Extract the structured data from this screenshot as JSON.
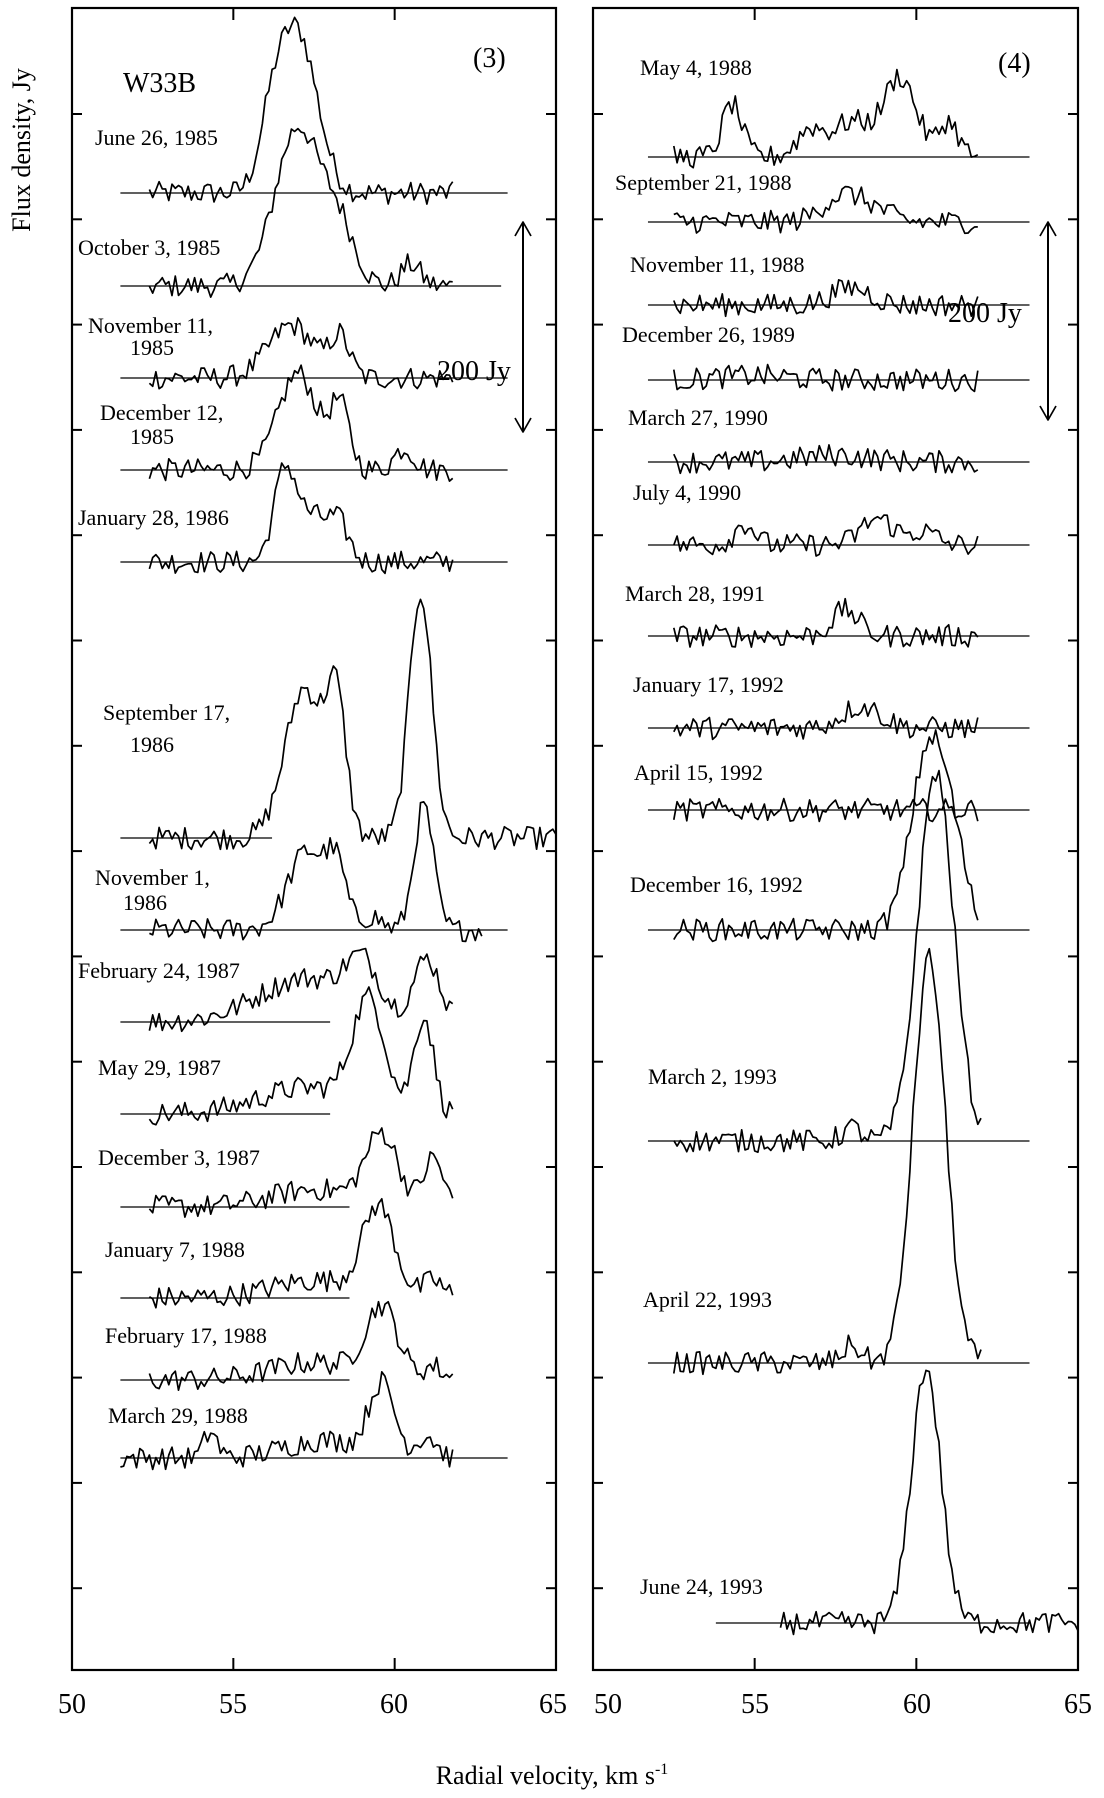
{
  "chart_data": {
    "type": "line",
    "xlabel": "Radial velocity, km s",
    "xlabel_sup": "-1",
    "ylabel": "Flux density, Jy",
    "xlim": [
      50,
      65
    ],
    "x_ticks": [
      "50",
      "55",
      "60",
      "65"
    ],
    "right_x_ticks": [
      "50",
      "55",
      "60",
      "65"
    ],
    "panels": [
      {
        "id": "3",
        "panel_label": "(3)",
        "source": "W33B",
        "scale_label": "200 Jy",
        "series": [
          {
            "name": "June 26, 1985",
            "name2": "",
            "peaks": [
              [
                57.0,
                180,
                0.6
              ],
              [
                56.2,
                60,
                0.4
              ]
            ]
          },
          {
            "name": "October 3, 1985",
            "name2": "",
            "peaks": [
              [
                57.0,
                180,
                0.7
              ],
              [
                58.3,
                60,
                0.5
              ],
              [
                60.5,
                25,
                0.3
              ]
            ]
          },
          {
            "name": "November 11,",
            "name2": "1985",
            "peaks": [
              [
                56.8,
                60,
                0.7
              ],
              [
                58.3,
                45,
                0.3
              ]
            ]
          },
          {
            "name": "December 12,",
            "name2": "1985",
            "peaks": [
              [
                57.0,
                110,
                0.6
              ],
              [
                58.3,
                70,
                0.3
              ],
              [
                60.3,
                25,
                0.3
              ]
            ]
          },
          {
            "name": "January 28, 1986",
            "name2": "",
            "peaks": [
              [
                56.6,
                100,
                0.35
              ],
              [
                57.5,
                50,
                0.5
              ],
              [
                58.3,
                35,
                0.3
              ]
            ]
          },
          {
            "name": "September 17,",
            "name2": "1986",
            "peaks": [
              [
                57.2,
                170,
                0.6
              ],
              [
                58.2,
                140,
                0.3
              ],
              [
                60.8,
                280,
                0.35
              ]
            ]
          },
          {
            "name": "November 1,",
            "name2": "1986",
            "peaks": [
              [
                57.3,
                90,
                0.6
              ],
              [
                58.2,
                60,
                0.3
              ],
              [
                60.9,
                140,
                0.3
              ],
              [
                59.3,
                15,
                0.3
              ]
            ]
          },
          {
            "name": "February 24, 1987",
            "name2": "",
            "peaks": [
              [
                57.3,
                50,
                1.5
              ],
              [
                59.0,
                50,
                0.5
              ],
              [
                61.0,
                70,
                0.4
              ]
            ]
          },
          {
            "name": "May 29, 1987",
            "name2": "",
            "peaks": [
              [
                57.3,
                30,
                1.5
              ],
              [
                59.2,
                120,
                0.5
              ],
              [
                60.9,
                110,
                0.3
              ]
            ]
          },
          {
            "name": "December 3, 1987",
            "name2": "",
            "peaks": [
              [
                57.5,
                20,
                1.3
              ],
              [
                59.6,
                80,
                0.5
              ],
              [
                61.2,
                55,
                0.3
              ]
            ]
          },
          {
            "name": "January 7, 1988",
            "name2": "",
            "peaks": [
              [
                57.5,
                20,
                1.3
              ],
              [
                59.5,
                100,
                0.5
              ],
              [
                61.2,
                20,
                0.3
              ]
            ]
          },
          {
            "name": "February 17, 1988",
            "name2": "",
            "peaks": [
              [
                57.5,
                20,
                1.3
              ],
              [
                59.6,
                80,
                0.5
              ],
              [
                61.2,
                15,
                0.3
              ]
            ]
          },
          {
            "name": "March 29, 1988",
            "name2": "",
            "peaks": [
              [
                54.3,
                30,
                0.2
              ],
              [
                57.8,
                20,
                1.2
              ],
              [
                59.6,
                80,
                0.4
              ],
              [
                61.0,
                25,
                0.3
              ]
            ]
          }
        ]
      },
      {
        "id": "4",
        "panel_label": "(4)",
        "source": "",
        "scale_label": "200 Jy",
        "series": [
          {
            "name": "May 4, 1988",
            "name2": "",
            "peaks": [
              [
                54.3,
                60,
                0.3
              ],
              [
                56.7,
                30,
                0.4
              ],
              [
                58.0,
                40,
                0.6
              ],
              [
                59.5,
                90,
                0.5
              ],
              [
                61.0,
                40,
                0.3
              ]
            ]
          },
          {
            "name": "September 21, 1988",
            "name2": "",
            "peaks": [
              [
                57.7,
                30,
                0.6
              ],
              [
                58.7,
                12,
                0.5
              ]
            ]
          },
          {
            "name": "November 11, 1988",
            "name2": "",
            "peaks": [
              [
                58.0,
                20,
                0.6
              ]
            ]
          },
          {
            "name": "December 26, 1989",
            "name2": "",
            "peaks": [
              [
                55.0,
                5,
                1.0
              ]
            ]
          },
          {
            "name": "March 27, 1990",
            "name2": "",
            "peaks": [
              [
                57.5,
                8,
                1.0
              ]
            ]
          },
          {
            "name": "July 4, 1990",
            "name2": "",
            "peaks": [
              [
                54.7,
                25,
                0.3
              ],
              [
                58.8,
                30,
                0.5
              ],
              [
                60.2,
                15,
                0.4
              ]
            ]
          },
          {
            "name": "March 28, 1991",
            "name2": "",
            "peaks": [
              [
                57.8,
                30,
                0.4
              ]
            ]
          },
          {
            "name": "January 17, 1992",
            "name2": "",
            "peaks": [
              [
                58.3,
                25,
                0.6
              ]
            ]
          },
          {
            "name": "April 15, 1992",
            "name2": "",
            "peaks": []
          },
          {
            "name": "December 16, 1992",
            "name2": "",
            "peaks": [
              [
                60.4,
                210,
                0.55
              ],
              [
                61.2,
                60,
                0.4
              ]
            ]
          },
          {
            "name": "March 2, 1993",
            "name2": "",
            "peaks": [
              [
                60.6,
                420,
                0.55
              ],
              [
                58.0,
                15,
                0.3
              ]
            ]
          },
          {
            "name": "April 22, 1993",
            "name2": "",
            "peaks": [
              [
                60.4,
                460,
                0.5
              ],
              [
                58.0,
                20,
                0.3
              ]
            ]
          },
          {
            "name": "June 24, 1993",
            "name2": "",
            "peaks": [
              [
                60.3,
                290,
                0.45
              ]
            ]
          }
        ]
      }
    ]
  }
}
